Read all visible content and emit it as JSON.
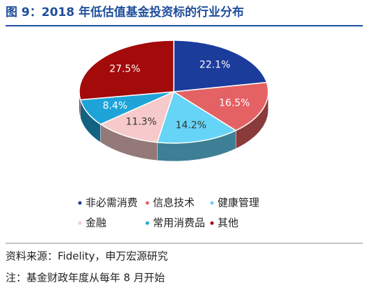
{
  "chart_data": {
    "type": "pie3d",
    "title": "图 9：2018 年低估值基金投资标的行业分布",
    "categories": [
      "非必需消费",
      "信息技术",
      "健康管理",
      "金融",
      "常用消费品",
      "其他"
    ],
    "values": [
      22.1,
      16.5,
      14.2,
      11.3,
      8.4,
      27.5
    ],
    "value_labels": [
      "22.1%",
      "16.5%",
      "14.2%",
      "11.3%",
      "8.4%",
      "27.5%"
    ],
    "colors": [
      "#1c3c9c",
      "#e46264",
      "#66d4f6",
      "#f6caca",
      "#1ea4d8",
      "#a30a0a"
    ],
    "legend": "bottom"
  },
  "footer": {
    "source": "资料来源：Fidelity，申万宏源研究",
    "note": "注：基金财政年度从每年 8 月开始"
  }
}
